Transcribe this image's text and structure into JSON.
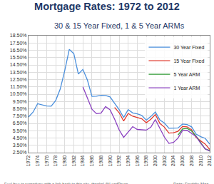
{
  "chart_data": {
    "type": "line",
    "title": "Mortgage Rates: 1972 to 2012",
    "subtitle": "30 & 15 Year Fixed, 1 & 5 Year ARMs",
    "annotations": [
      "Feel free to reproduce with a link back to this site, thanks! @LeadPress",
      "Data: Freddie Mac"
    ],
    "x": [
      1972,
      1973,
      1974,
      1975,
      1976,
      1977,
      1978,
      1979,
      1980,
      1981,
      1982,
      1983,
      1984,
      1985,
      1986,
      1987,
      1988,
      1989,
      1990,
      1991,
      1992,
      1993,
      1994,
      1995,
      1996,
      1997,
      1998,
      1999,
      2000,
      2001,
      2002,
      2003,
      2004,
      2005,
      2006,
      2007,
      2008,
      2009,
      2010,
      2011,
      2012
    ],
    "series": [
      {
        "name": "30 Year Fixed",
        "color": "#4a8fdc",
        "values": [
          7.38,
          8.04,
          9.19,
          9.05,
          8.87,
          8.85,
          9.64,
          11.2,
          13.74,
          16.63,
          16.04,
          13.24,
          13.88,
          12.43,
          10.19,
          10.21,
          10.34,
          10.32,
          10.13,
          9.25,
          8.39,
          7.31,
          8.38,
          7.93,
          7.81,
          7.6,
          6.94,
          7.44,
          8.05,
          6.97,
          6.54,
          5.83,
          5.84,
          5.87,
          6.41,
          6.34,
          6.03,
          5.04,
          4.69,
          4.45,
          3.66
        ]
      },
      {
        "name": "15 Year Fixed",
        "color": "#e03a2f",
        "values": [
          null,
          null,
          null,
          null,
          null,
          null,
          null,
          null,
          null,
          null,
          null,
          null,
          null,
          null,
          null,
          null,
          null,
          null,
          null,
          8.69,
          7.96,
          6.83,
          7.86,
          7.48,
          7.32,
          7.13,
          6.59,
          7.06,
          7.72,
          6.5,
          5.98,
          5.17,
          5.21,
          5.42,
          6.07,
          6.03,
          5.62,
          4.57,
          4.1,
          3.68,
          2.93
        ]
      },
      {
        "name": "5 Year ARM",
        "color": "#2f9a35",
        "values": [
          null,
          null,
          null,
          null,
          null,
          null,
          null,
          null,
          null,
          null,
          null,
          null,
          null,
          null,
          null,
          null,
          null,
          null,
          null,
          null,
          null,
          null,
          null,
          null,
          null,
          null,
          null,
          null,
          null,
          null,
          null,
          null,
          null,
          4.9,
          5.73,
          5.83,
          5.46,
          4.75,
          3.82,
          3.0,
          2.8
        ]
      },
      {
        "name": "1 Year ARM",
        "color": "#8a40c0",
        "values": [
          null,
          null,
          null,
          null,
          null,
          null,
          null,
          null,
          null,
          null,
          null,
          null,
          11.51,
          10.05,
          8.43,
          7.83,
          7.9,
          8.8,
          8.36,
          7.09,
          5.62,
          4.58,
          5.36,
          6.06,
          5.67,
          5.61,
          5.58,
          5.99,
          7.04,
          5.82,
          4.62,
          3.76,
          3.9,
          4.49,
          5.54,
          5.56,
          5.17,
          4.7,
          3.78,
          3.02,
          2.7
        ]
      }
    ],
    "xlim": [
      1972,
      2012
    ],
    "xticks": [
      1972,
      1974,
      1976,
      1978,
      1980,
      1982,
      1984,
      1986,
      1988,
      1990,
      1992,
      1994,
      1996,
      1998,
      2000,
      2002,
      2004,
      2006,
      2008,
      2010,
      2012
    ],
    "ylim": [
      2.5,
      18.5
    ],
    "yticks": [
      {
        "value": 2.5,
        "label": "2.50%"
      },
      {
        "value": 3.5,
        "label": "3.50%"
      },
      {
        "value": 4.5,
        "label": "4.50%"
      },
      {
        "value": 5.5,
        "label": "5.50%"
      },
      {
        "value": 6.5,
        "label": "6.50%"
      },
      {
        "value": 7.5,
        "label": "7.50%"
      },
      {
        "value": 8.5,
        "label": "8.50%"
      },
      {
        "value": 9.5,
        "label": "9.50%"
      },
      {
        "value": 10.5,
        "label": "10.50%"
      },
      {
        "value": 11.5,
        "label": "11.50%"
      },
      {
        "value": 12.5,
        "label": "12.50%"
      },
      {
        "value": 13.5,
        "label": "13.50%"
      },
      {
        "value": 14.5,
        "label": "14.50%"
      },
      {
        "value": 15.5,
        "label": "15.50%"
      },
      {
        "value": 16.5,
        "label": "16.50%"
      },
      {
        "value": 17.5,
        "label": "17.50%"
      },
      {
        "value": 18.5,
        "label": "18.50%"
      }
    ],
    "grid": true,
    "legend": "top-right"
  }
}
